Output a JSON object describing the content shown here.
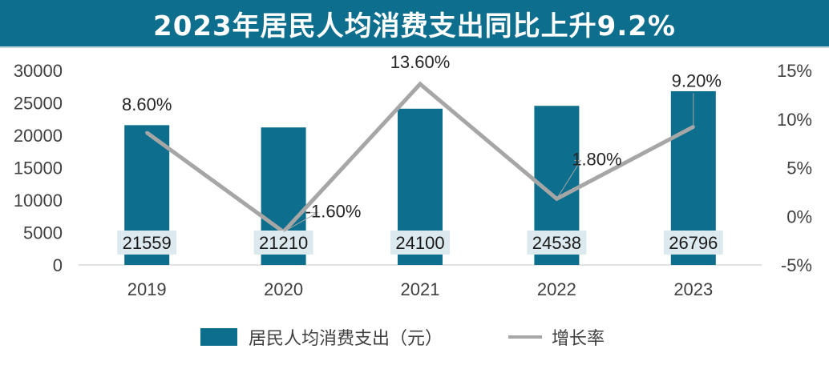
{
  "header": {
    "title": "2023年居民人均消费支出同比上升9.2%"
  },
  "colors": {
    "bar": "#0d6e8d",
    "line": "#a6a6a6",
    "bar_label_bg": "#dce9ef",
    "title_bg": "#0d6e8d"
  },
  "chart_data": {
    "type": "bar",
    "title": "2023年居民人均消费支出同比上升9.2%",
    "categories": [
      "2019",
      "2020",
      "2021",
      "2022",
      "2023"
    ],
    "series": [
      {
        "name": "居民人均消费支出（元）",
        "type": "bar",
        "axis": "left",
        "values": [
          21559,
          21210,
          24100,
          24538,
          26796
        ],
        "labels": [
          "21559",
          "21210",
          "24100",
          "24538",
          "26796"
        ]
      },
      {
        "name": "增长率",
        "type": "line",
        "axis": "right",
        "values": [
          8.6,
          -1.6,
          13.6,
          1.8,
          9.2
        ],
        "labels": [
          "8.60%",
          "-1.60%",
          "13.60%",
          "1.80%",
          "9.20%"
        ]
      }
    ],
    "y_left": {
      "ylim": [
        0,
        30000
      ],
      "ticks": [
        "0",
        "5000",
        "10000",
        "15000",
        "20000",
        "25000",
        "30000"
      ]
    },
    "y_right": {
      "ylim": [
        -5,
        15
      ],
      "ticks": [
        "-5%",
        "0%",
        "5%",
        "10%",
        "15%"
      ]
    },
    "legend": {
      "position": "bottom",
      "items": [
        "居民人均消费支出（元）",
        "增长率"
      ]
    },
    "grid": false
  }
}
